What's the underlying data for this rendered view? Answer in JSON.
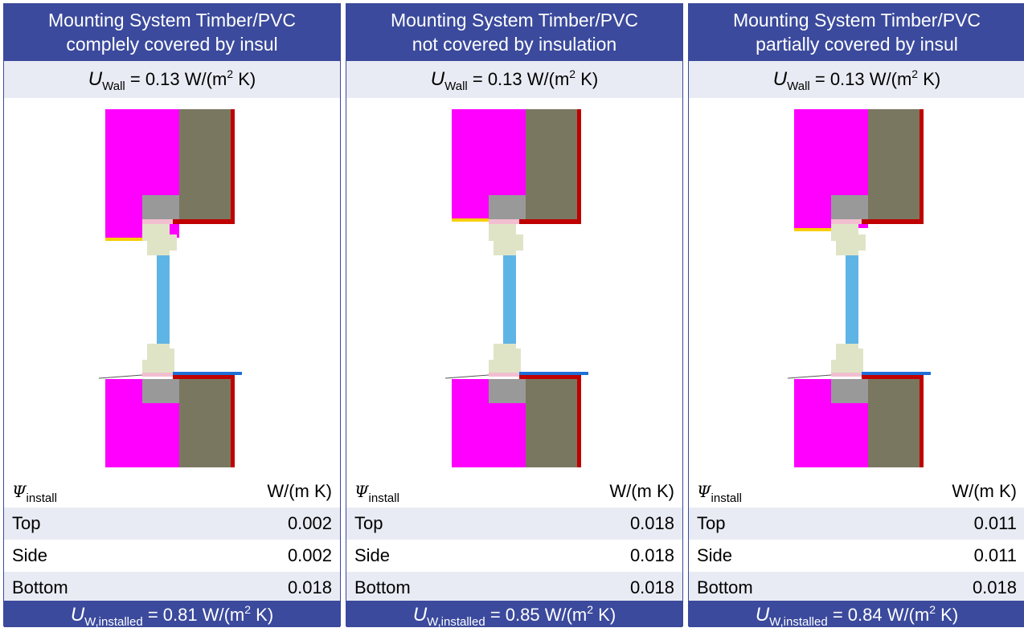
{
  "panels": [
    {
      "title_line1": "Mounting System Timber/PVC",
      "title_line2": "complely covered by insul",
      "u_wall_sym": "U",
      "u_wall_sub": "Wall",
      "u_wall_value": "= 0.13 W/(m",
      "u_wall_exp": "2",
      "u_wall_tail": " K)",
      "psi_sym": "Ψ",
      "psi_sub": "install",
      "psi_unit": "W/(m K)",
      "rows": [
        {
          "label": "Top",
          "value": "0.002"
        },
        {
          "label": "Side",
          "value": "0.002"
        },
        {
          "label": "Bottom",
          "value": "0.018"
        }
      ],
      "uw_sym": "U",
      "uw_sub": "W,installed",
      "uw_value": "= 0.81 W/(m",
      "uw_exp": "2",
      "uw_tail": " K)"
    },
    {
      "title_line1": "Mounting System Timber/PVC",
      "title_line2": "not covered by insulation",
      "u_wall_sym": "U",
      "u_wall_sub": "Wall",
      "u_wall_value": "= 0.13 W/(m",
      "u_wall_exp": "2",
      "u_wall_tail": " K)",
      "psi_sym": "Ψ",
      "psi_sub": "install",
      "psi_unit": "W/(m K)",
      "rows": [
        {
          "label": "Top",
          "value": "0.018"
        },
        {
          "label": "Side",
          "value": "0.018"
        },
        {
          "label": "Bottom",
          "value": "0.018"
        }
      ],
      "uw_sym": "U",
      "uw_sub": "W,installed",
      "uw_value": "= 0.85 W/(m",
      "uw_exp": "2",
      "uw_tail": " K)"
    },
    {
      "title_line1": "Mounting System Timber/PVC",
      "title_line2": "partially covered by insul",
      "u_wall_sym": "U",
      "u_wall_sub": "Wall",
      "u_wall_value": "= 0.13 W/(m",
      "u_wall_exp": "2",
      "u_wall_tail": " K)",
      "psi_sym": "Ψ",
      "psi_sub": "install",
      "psi_unit": "W/(m K)",
      "rows": [
        {
          "label": "Top",
          "value": "0.011"
        },
        {
          "label": "Side",
          "value": "0.011"
        },
        {
          "label": "Bottom",
          "value": "0.018"
        }
      ],
      "uw_sym": "U",
      "uw_sub": "W,installed",
      "uw_value": "= 0.84 W/(m",
      "uw_exp": "2",
      "uw_tail": " K)"
    }
  ],
  "colors": {
    "header": "#3b4a9c",
    "row_alt": "#e9ebf4",
    "insulation": "#ff00ff",
    "masonry": "#7a7760",
    "render": "#c00000",
    "frame": "#dfe4c6",
    "glass": "#5fb4e6",
    "mounting": "#999999",
    "seal": "#f2bfd0",
    "sill": "#1f6fd6",
    "lintel_strip": "#f5d000"
  }
}
